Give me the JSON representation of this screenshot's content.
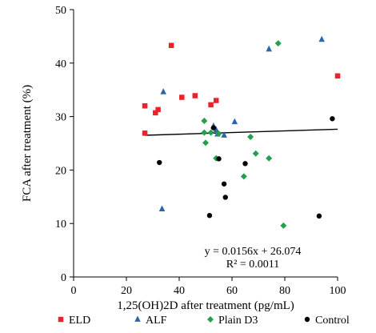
{
  "chart_data": {
    "type": "scatter",
    "title": "",
    "xlabel": "1,25(OH)2D after treatment (pg/mL)",
    "ylabel": "FCA after treatment (%)",
    "xlim": [
      0,
      100
    ],
    "ylim": [
      0,
      50
    ],
    "xticks": [
      "0",
      "20",
      "40",
      "60",
      "80",
      "100"
    ],
    "yticks": [
      "0",
      "10",
      "20",
      "30",
      "40",
      "50"
    ],
    "grid": false,
    "legend_position": "bottom",
    "series": [
      {
        "name": "ELD",
        "color": "#e8232a",
        "marker": "square",
        "points": [
          [
            27,
            26.9
          ],
          [
            27,
            32
          ],
          [
            31,
            30.7
          ],
          [
            32,
            31.3
          ],
          [
            37,
            43.3
          ],
          [
            41,
            33.6
          ],
          [
            46,
            33.9
          ],
          [
            52,
            32.2
          ],
          [
            54,
            33
          ],
          [
            100,
            37.6
          ]
        ]
      },
      {
        "name": "ALF",
        "color": "#2a66ac",
        "marker": "triangle",
        "points": [
          [
            34,
            34.6
          ],
          [
            33.5,
            12.7
          ],
          [
            53,
            28.2
          ],
          [
            54,
            27.5
          ],
          [
            54.5,
            26.7
          ],
          [
            57,
            26.5
          ],
          [
            61,
            29
          ],
          [
            74,
            42.6
          ],
          [
            94,
            44.4
          ]
        ]
      },
      {
        "name": "Plain D3",
        "color": "#22a04b",
        "marker": "diamond",
        "points": [
          [
            49.5,
            29.2
          ],
          [
            49.5,
            27
          ],
          [
            50,
            25.1
          ],
          [
            52,
            27
          ],
          [
            55,
            26.8
          ],
          [
            54,
            22.2
          ],
          [
            64.5,
            18.8
          ],
          [
            67,
            26.2
          ],
          [
            69,
            23.1
          ],
          [
            74,
            22.2
          ],
          [
            77.5,
            43.7
          ],
          [
            79.5,
            9.6
          ]
        ]
      },
      {
        "name": "Control",
        "color": "#000000",
        "marker": "circle",
        "points": [
          [
            32.5,
            21.4
          ],
          [
            51.5,
            11.5
          ],
          [
            53,
            27.9
          ],
          [
            55,
            22.1
          ],
          [
            57,
            17.4
          ],
          [
            57.5,
            14.9
          ],
          [
            65,
            21.2
          ],
          [
            93,
            11.4
          ],
          [
            98,
            29.6
          ]
        ]
      }
    ],
    "trendline": {
      "slope": 0.0156,
      "intercept": 26.074,
      "x_range": [
        27,
        100
      ],
      "color": "#000000"
    },
    "annotations": {
      "equation": "y = 0.0156x + 26.074",
      "r_squared": "R² = 0.0011"
    }
  }
}
